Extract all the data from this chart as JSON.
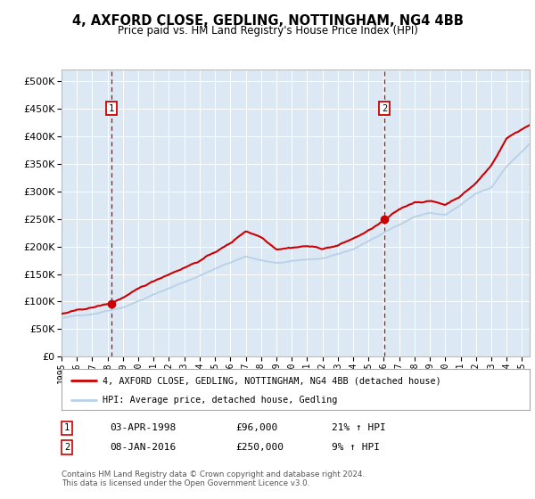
{
  "title": "4, AXFORD CLOSE, GEDLING, NOTTINGHAM, NG4 4BB",
  "subtitle": "Price paid vs. HM Land Registry's House Price Index (HPI)",
  "legend_line1": "4, AXFORD CLOSE, GEDLING, NOTTINGHAM, NG4 4BB (detached house)",
  "legend_line2": "HPI: Average price, detached house, Gedling",
  "transaction1_date": "03-APR-1998",
  "transaction1_price": "£96,000",
  "transaction1_hpi": "21% ↑ HPI",
  "transaction2_date": "08-JAN-2016",
  "transaction2_price": "£250,000",
  "transaction2_hpi": "9% ↑ HPI",
  "footer": "Contains HM Land Registry data © Crown copyright and database right 2024.\nThis data is licensed under the Open Government Licence v3.0.",
  "hpi_color": "#b8d0e8",
  "price_color": "#cc0000",
  "plot_bg": "#dce9f5",
  "ylim": [
    0,
    520000
  ],
  "yticks": [
    0,
    50000,
    100000,
    150000,
    200000,
    250000,
    300000,
    350000,
    400000,
    450000,
    500000
  ],
  "transaction1_x": 1998.25,
  "transaction1_y": 96000,
  "transaction2_x": 2016.03,
  "transaction2_y": 250000,
  "xmin": 1995.0,
  "xmax": 2025.5
}
